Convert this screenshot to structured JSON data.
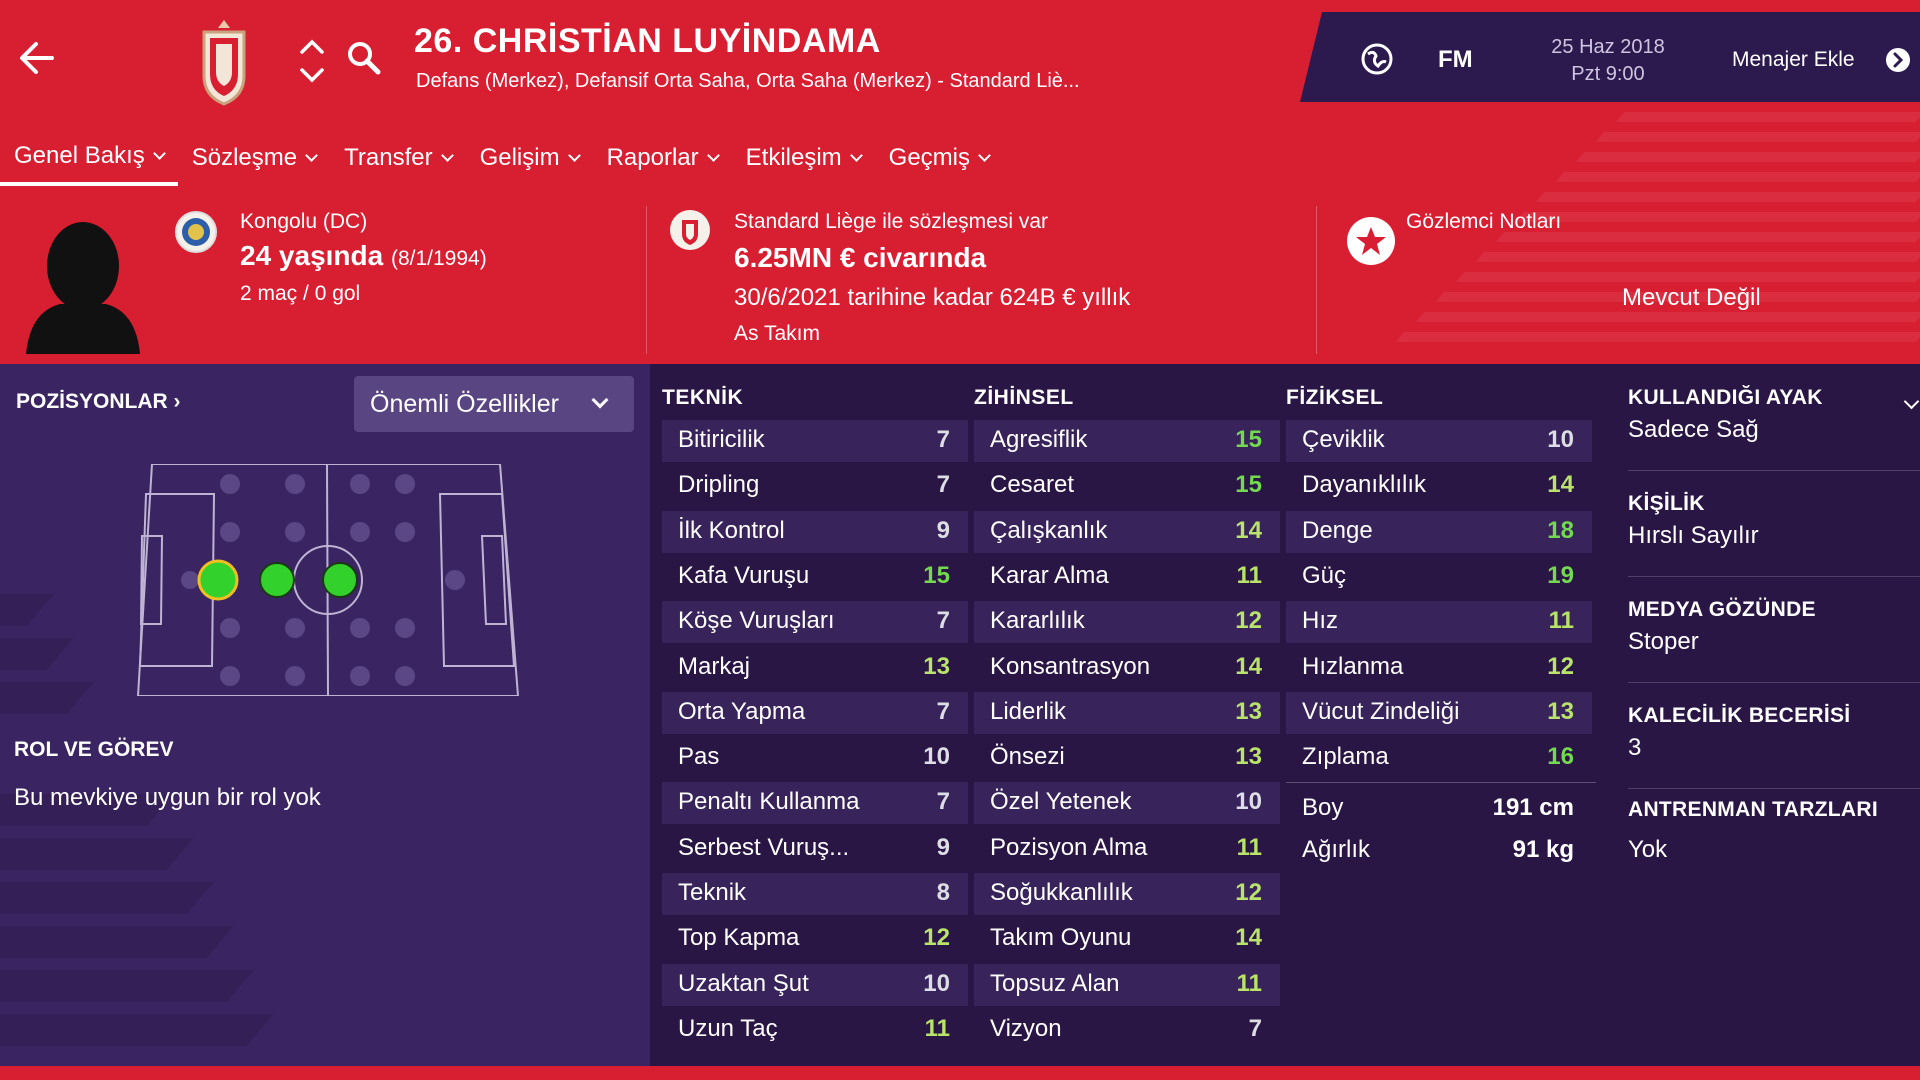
{
  "header": {
    "player_title": "26. CHRİSTİAN LUYİNDAMA",
    "player_subtitle": "Defans (Merkez), Defansif Orta Saha, Orta Saha (Merkez) - Standard Liè...",
    "fm_logo": "FM",
    "date_line1": "25 Haz 2018",
    "date_line2": "Pzt 9:00",
    "manager_add": "Menajer Ekle"
  },
  "tabs": [
    {
      "label": "Genel Bakış"
    },
    {
      "label": "Sözleşme"
    },
    {
      "label": "Transfer"
    },
    {
      "label": "Gelişim"
    },
    {
      "label": "Raporlar"
    },
    {
      "label": "Etkileşim"
    },
    {
      "label": "Geçmiş"
    }
  ],
  "info": {
    "nationality": "Kongolu (DC)",
    "age": "24 yaşında",
    "dob": "(8/1/1994)",
    "apps": "2 maç / 0 gol",
    "contract_club": "Standard Liège ile sözleşmesi var",
    "value": "6.25MN € civarında",
    "wage": "30/6/2021 tarihine kadar 624B € yıllık",
    "squad_status": "As Takım",
    "scout_title": "Gözlemci Notları",
    "scout_value": "Mevcut Değil"
  },
  "left": {
    "positions_label": "POZİSYONLAR ›",
    "dropdown_label": "Önemli Özellikler",
    "role_title": "ROL VE GÖREV",
    "role_text": "Bu mevkiye uygun bir rol yok"
  },
  "columns": {
    "technical_title": "TEKNİK",
    "mental_title": "ZİHİNSEL",
    "physical_title": "FİZİKSEL"
  },
  "technical": [
    {
      "name": "Bitiricilik",
      "value": 7
    },
    {
      "name": "Dripling",
      "value": 7
    },
    {
      "name": "İlk Kontrol",
      "value": 9
    },
    {
      "name": "Kafa Vuruşu",
      "value": 15
    },
    {
      "name": "Köşe Vuruşları",
      "value": 7
    },
    {
      "name": "Markaj",
      "value": 13
    },
    {
      "name": "Orta Yapma",
      "value": 7
    },
    {
      "name": "Pas",
      "value": 10
    },
    {
      "name": "Penaltı Kullanma",
      "value": 7
    },
    {
      "name": "Serbest Vuruş...",
      "value": 9
    },
    {
      "name": "Teknik",
      "value": 8
    },
    {
      "name": "Top Kapma",
      "value": 12
    },
    {
      "name": "Uzaktan Şut",
      "value": 10
    },
    {
      "name": "Uzun Taç",
      "value": 11
    }
  ],
  "mental": [
    {
      "name": "Agresiflik",
      "value": 15
    },
    {
      "name": "Cesaret",
      "value": 15
    },
    {
      "name": "Çalışkanlık",
      "value": 14
    },
    {
      "name": "Karar Alma",
      "value": 11
    },
    {
      "name": "Kararlılık",
      "value": 12
    },
    {
      "name": "Konsantrasyon",
      "value": 14
    },
    {
      "name": "Liderlik",
      "value": 13
    },
    {
      "name": "Önsezi",
      "value": 13
    },
    {
      "name": "Özel Yetenek",
      "value": 10
    },
    {
      "name": "Pozisyon Alma",
      "value": 11
    },
    {
      "name": "Soğukkanlılık",
      "value": 12
    },
    {
      "name": "Takım Oyunu",
      "value": 14
    },
    {
      "name": "Topsuz Alan",
      "value": 11
    },
    {
      "name": "Vizyon",
      "value": 7
    }
  ],
  "physical": [
    {
      "name": "Çeviklik",
      "value": 10
    },
    {
      "name": "Dayanıklılık",
      "value": 14
    },
    {
      "name": "Denge",
      "value": 18
    },
    {
      "name": "Güç",
      "value": 19
    },
    {
      "name": "Hız",
      "value": 11
    },
    {
      "name": "Hızlanma",
      "value": 12
    },
    {
      "name": "Vücut Zindeliği",
      "value": 13
    },
    {
      "name": "Zıplama",
      "value": 16
    }
  ],
  "body": {
    "height_label": "Boy",
    "height_value": "191 cm",
    "weight_label": "Ağırlık",
    "weight_value": "91 kg"
  },
  "side": [
    {
      "label": "KULLANDIĞI AYAK",
      "value": "Sadece Sağ"
    },
    {
      "label": "KİŞİLİK",
      "value": "Hırslı Sayılır"
    },
    {
      "label": "MEDYA GÖZÜNDE",
      "value": "Stoper"
    },
    {
      "label": "KALECİLİK BECERİSİ",
      "value": "3"
    },
    {
      "label": "ANTRENMAN TARZLARI",
      "value": "Yok"
    }
  ],
  "colors": {
    "header_red": "#d81f32",
    "panel_purple": "#2a1645",
    "left_purple": "#3a2461",
    "value_high": "#73d94e",
    "value_mid": "#b9e36a",
    "value_low": "#dddde6",
    "position_dot": "#33d12b"
  }
}
